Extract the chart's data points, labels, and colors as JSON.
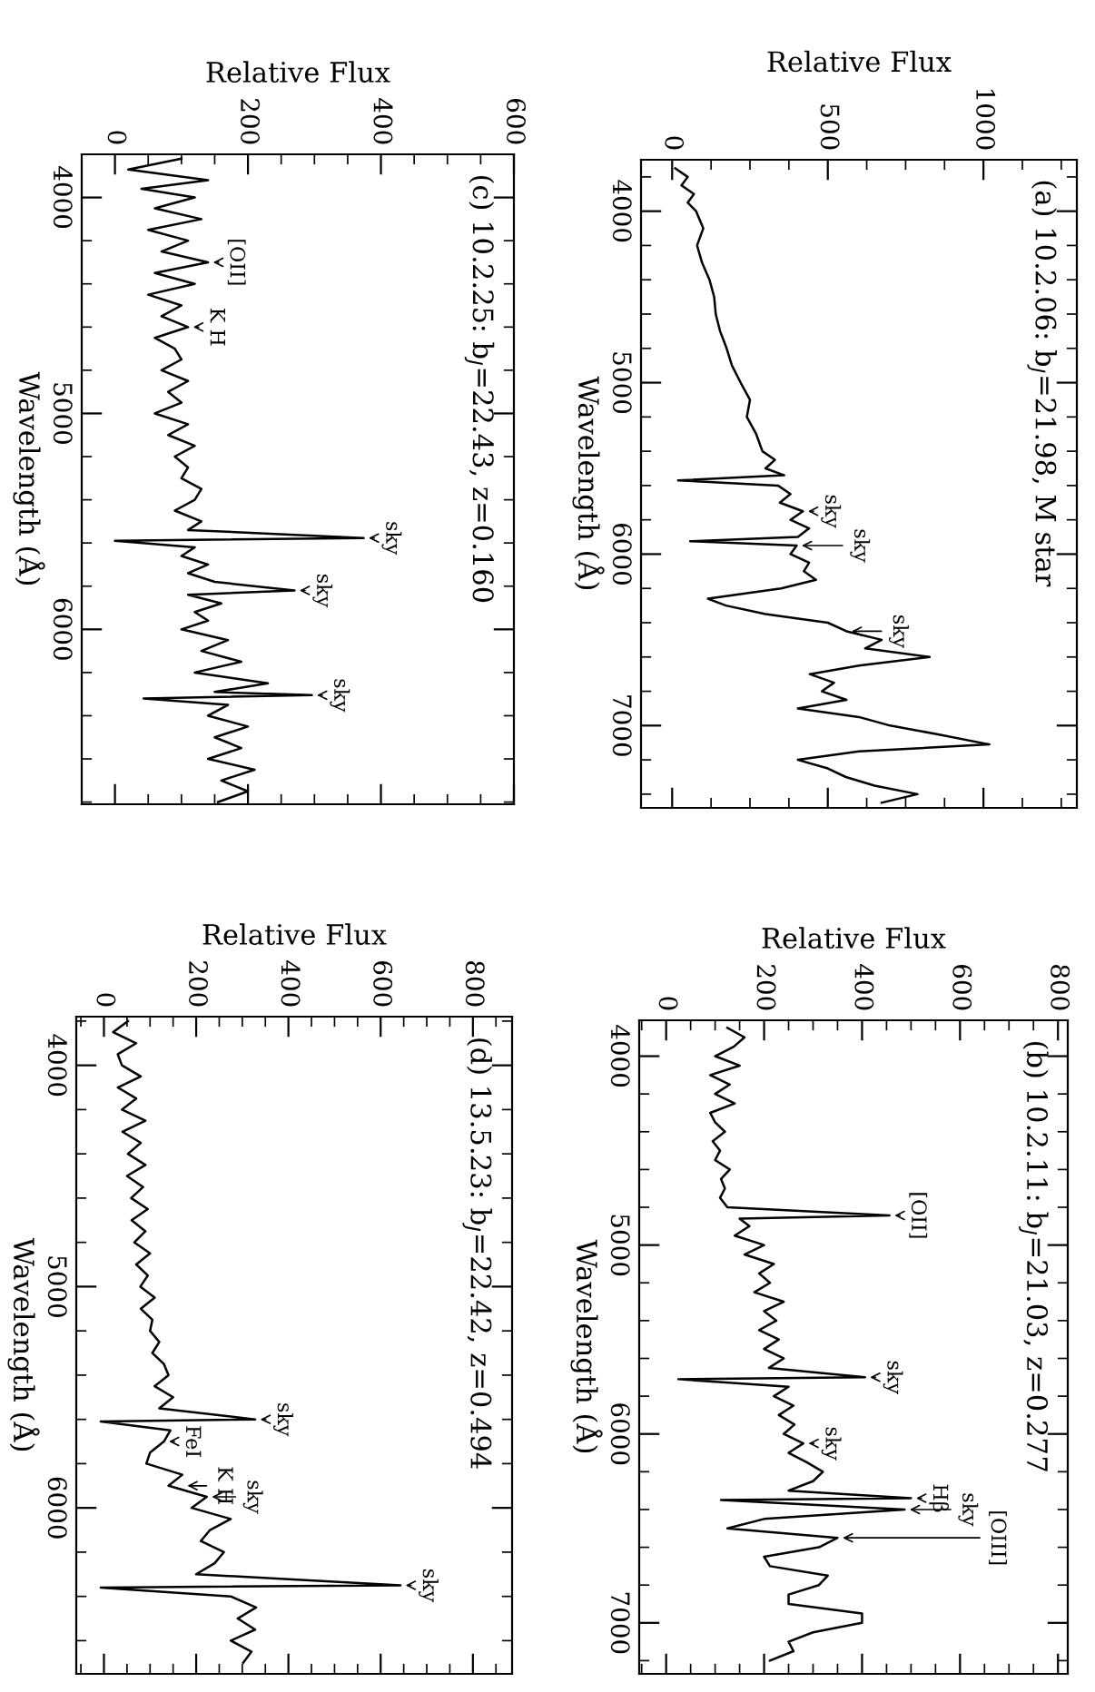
{
  "chart_data": [
    {
      "type": "line",
      "orientation": "horizontal",
      "title": "(c) 10.2.25: b$_{J}$=22.43, z=0.160",
      "xlabel": "Relative Flux",
      "ylabel": "Wavelength (Å)",
      "xlim": [
        -50,
        600
      ],
      "ylim": [
        6810,
        3800
      ],
      "xticks": [
        0,
        200,
        400,
        600
      ],
      "yticks": [
        4000,
        5000,
        6000
      ],
      "x": [
        3820,
        3870,
        3920,
        3960,
        4000,
        4050,
        4100,
        4150,
        4200,
        4250,
        4300,
        4350,
        4400,
        4450,
        4500,
        4550,
        4600,
        4650,
        4700,
        4750,
        4800,
        4850,
        4900,
        4950,
        5000,
        5050,
        5100,
        5150,
        5200,
        5250,
        5300,
        5350,
        5400,
        5450,
        5500,
        5540,
        5577,
        5590,
        5620,
        5660,
        5700,
        5740,
        5780,
        5820,
        5840,
        5880,
        5920,
        5960,
        6000,
        6050,
        6100,
        6150,
        6200,
        6250,
        6290,
        6305,
        6320,
        6350,
        6400,
        6450,
        6500,
        6550,
        6600,
        6650,
        6700,
        6750,
        6800
      ],
      "series": [
        {
          "color": "#000000",
          "values": [
            100,
            20,
            140,
            40,
            120,
            60,
            130,
            50,
            110,
            70,
            140,
            60,
            120,
            50,
            100,
            70,
            110,
            60,
            90,
            100,
            70,
            110,
            80,
            100,
            60,
            110,
            80,
            120,
            90,
            110,
            100,
            130,
            120,
            90,
            130,
            110,
            374,
            0,
            120,
            100,
            140,
            110,
            150,
            270,
            110,
            160,
            120,
            140,
            100,
            170,
            130,
            190,
            120,
            230,
            150,
            296,
            43,
            170,
            140,
            200,
            150,
            190,
            140,
            210,
            160,
            200,
            155
          ]
        }
      ],
      "annotations": [
        {
          "text": "[OII]",
          "x": 140,
          "y": 4300
        },
        {
          "text": "K H",
          "x": 110,
          "y": 4600
        },
        {
          "text": "sky",
          "x": 374,
          "y": 5577
        },
        {
          "text": "sky",
          "x": 270,
          "y": 5820
        },
        {
          "text": "sky",
          "x": 296,
          "y": 6305
        }
      ]
    },
    {
      "type": "line",
      "orientation": "horizontal",
      "title": "(a) 10.2.06: b$_{J}$=21.98, M star",
      "xlabel": "Relative Flux",
      "ylabel": "Wavelength (Å)",
      "xlim": [
        -100,
        1300
      ],
      "ylim": [
        7480,
        3700
      ],
      "xticks": [
        0,
        500,
        1000
      ],
      "yticks": [
        4000,
        5000,
        6000,
        7000
      ],
      "x": [
        3750,
        3800,
        3850,
        3900,
        3950,
        4000,
        4100,
        4200,
        4300,
        4400,
        4500,
        4600,
        4700,
        4800,
        4900,
        5000,
        5100,
        5200,
        5300,
        5400,
        5450,
        5500,
        5540,
        5570,
        5600,
        5650,
        5700,
        5750,
        5800,
        5850,
        5900,
        5925,
        5950,
        6000,
        6050,
        6100,
        6150,
        6200,
        6260,
        6300,
        6350,
        6400,
        6450,
        6500,
        6550,
        6600,
        6650,
        6700,
        6750,
        6800,
        6850,
        6900,
        6950,
        7000,
        7050,
        7110,
        7150,
        7200,
        7250,
        7300,
        7350,
        7400,
        7450
      ],
      "series": [
        {
          "color": "#000000",
          "values": [
            10,
            50,
            30,
            70,
            50,
            77,
            100,
            80,
            96,
            120,
            135,
            140,
            154,
            175,
            192,
            220,
            250,
            240,
            270,
            290,
            330,
            300,
            360,
            19,
            340,
            380,
            346,
            420,
            380,
            440,
            404,
            58,
            400,
            380,
            440,
            423,
            462,
            350,
            115,
            173,
            300,
            500,
            560,
            673,
            620,
            827,
            600,
            442,
            520,
            481,
            560,
            404,
            600,
            700,
            850,
            1019,
            600,
            404,
            500,
            558,
            650,
            788,
            673
          ]
        }
      ],
      "annotations": [
        {
          "text": "sky",
          "x": 420,
          "y": 5750
        },
        {
          "text": "sky",
          "x": 400,
          "y": 5950
        },
        {
          "text": "sky",
          "x": 560,
          "y": 6450
        }
      ]
    },
    {
      "type": "line",
      "orientation": "horizontal",
      "title": "(d) 13.5.23: b$_{J}$=22.42, z=0.494",
      "xlabel": "Relative Flux",
      "ylabel": "Wavelength (Å)",
      "xlim": [
        -60,
        885
      ],
      "ylim": [
        6750,
        3780
      ],
      "xticks": [
        0,
        200,
        400,
        600,
        800
      ],
      "yticks": [
        4000,
        5000,
        6000
      ],
      "x": [
        3800,
        3850,
        3900,
        3950,
        4000,
        4050,
        4100,
        4150,
        4200,
        4250,
        4300,
        4350,
        4400,
        4450,
        4500,
        4550,
        4600,
        4650,
        4700,
        4750,
        4800,
        4850,
        4900,
        4950,
        5000,
        5050,
        5100,
        5150,
        5200,
        5250,
        5300,
        5350,
        5400,
        5450,
        5500,
        5550,
        5600,
        5610,
        5650,
        5700,
        5750,
        5800,
        5850,
        5900,
        5950,
        6000,
        6050,
        6100,
        6150,
        6200,
        6250,
        6300,
        6350,
        6360,
        6400,
        6450,
        6500,
        6550,
        6600,
        6650,
        6700
      ],
      "series": [
        {
          "color": "#000000",
          "values": [
            52,
            20,
            70,
            30,
            39,
            80,
            30,
            70,
            39,
            90,
            40,
            80,
            52,
            90,
            50,
            85,
            59,
            95,
            60,
            90,
            66,
            100,
            70,
            95,
            79,
            110,
            80,
            105,
            100,
            120,
            105,
            130,
            140,
            110,
            150,
            120,
            328,
            -7,
            144,
            130,
            100,
            92,
            170,
            140,
            223,
            190,
            275,
            230,
            210,
            260,
            240,
            200,
            643,
            -7,
            275,
            330,
            290,
            328,
            275,
            320,
            302
          ]
        }
      ],
      "annotations": [
        {
          "text": "sky",
          "x": 328,
          "y": 5600
        },
        {
          "text": "FeI",
          "x": 130,
          "y": 5700
        },
        {
          "text": "K H",
          "x": 170,
          "y": 5900
        },
        {
          "text": "sky",
          "x": 223,
          "y": 5950
        },
        {
          "text": "sky",
          "x": 643,
          "y": 6350
        }
      ]
    },
    {
      "type": "line",
      "orientation": "horizontal",
      "title": "(b) 10.2.11: b$_{J}$=21.03, z=0.277",
      "xlabel": "Relative Flux",
      "ylabel": "Wavelength (Å)",
      "xlim": [
        -55,
        820
      ],
      "ylim": [
        7270,
        3810
      ],
      "xticks": [
        0,
        200,
        400,
        600,
        800
      ],
      "yticks": [
        4000,
        5000,
        6000,
        7000
      ],
      "x": [
        3850,
        3900,
        3950,
        4000,
        4050,
        4100,
        4150,
        4200,
        4250,
        4300,
        4350,
        4400,
        4450,
        4500,
        4550,
        4600,
        4650,
        4700,
        4750,
        4800,
        4843,
        4860,
        4900,
        4950,
        5000,
        5050,
        5100,
        5150,
        5200,
        5250,
        5300,
        5350,
        5400,
        5450,
        5500,
        5550,
        5600,
        5650,
        5700,
        5710,
        5750,
        5800,
        5850,
        5900,
        5950,
        6000,
        6050,
        6100,
        6150,
        6200,
        6250,
        6300,
        6340,
        6350,
        6400,
        6450,
        6500,
        6550,
        6600,
        6650,
        6700,
        6750,
        6800,
        6850,
        6900,
        6950,
        7000,
        7050,
        7100,
        7150,
        7200
      ],
      "series": [
        {
          "color": "#000000",
          "values": [
            125,
            160,
            138,
            100,
            150,
            90,
            130,
            100,
            140,
            90,
            100,
            120,
            95,
            110,
            100,
            130,
            112,
            120,
            110,
            125,
            456,
            150,
            170,
            140,
            200,
            160,
            220,
            190,
            212,
            180,
            240,
            200,
            225,
            190,
            230,
            200,
            240,
            210,
            406,
            25,
            250,
            220,
            260,
            230,
            262,
            240,
            280,
            250,
            287,
            320,
            300,
            250,
            500,
            112,
            487,
            200,
            125,
            350,
            312,
            200,
            212,
            330,
            312,
            250,
            250,
            400,
            400,
            300,
            250,
            260,
            212
          ]
        }
      ],
      "annotations": [
        {
          "text": "[OII]",
          "x": 456,
          "y": 4843
        },
        {
          "text": "sky",
          "x": 406,
          "y": 5700
        },
        {
          "text": "sky",
          "x": 280,
          "y": 6050
        },
        {
          "text": "Hβ",
          "x": 500,
          "y": 6340
        },
        {
          "text": "sky",
          "x": 487,
          "y": 6400
        },
        {
          "text": "[OIII]",
          "x": 350,
          "y": 6550
        }
      ]
    }
  ]
}
